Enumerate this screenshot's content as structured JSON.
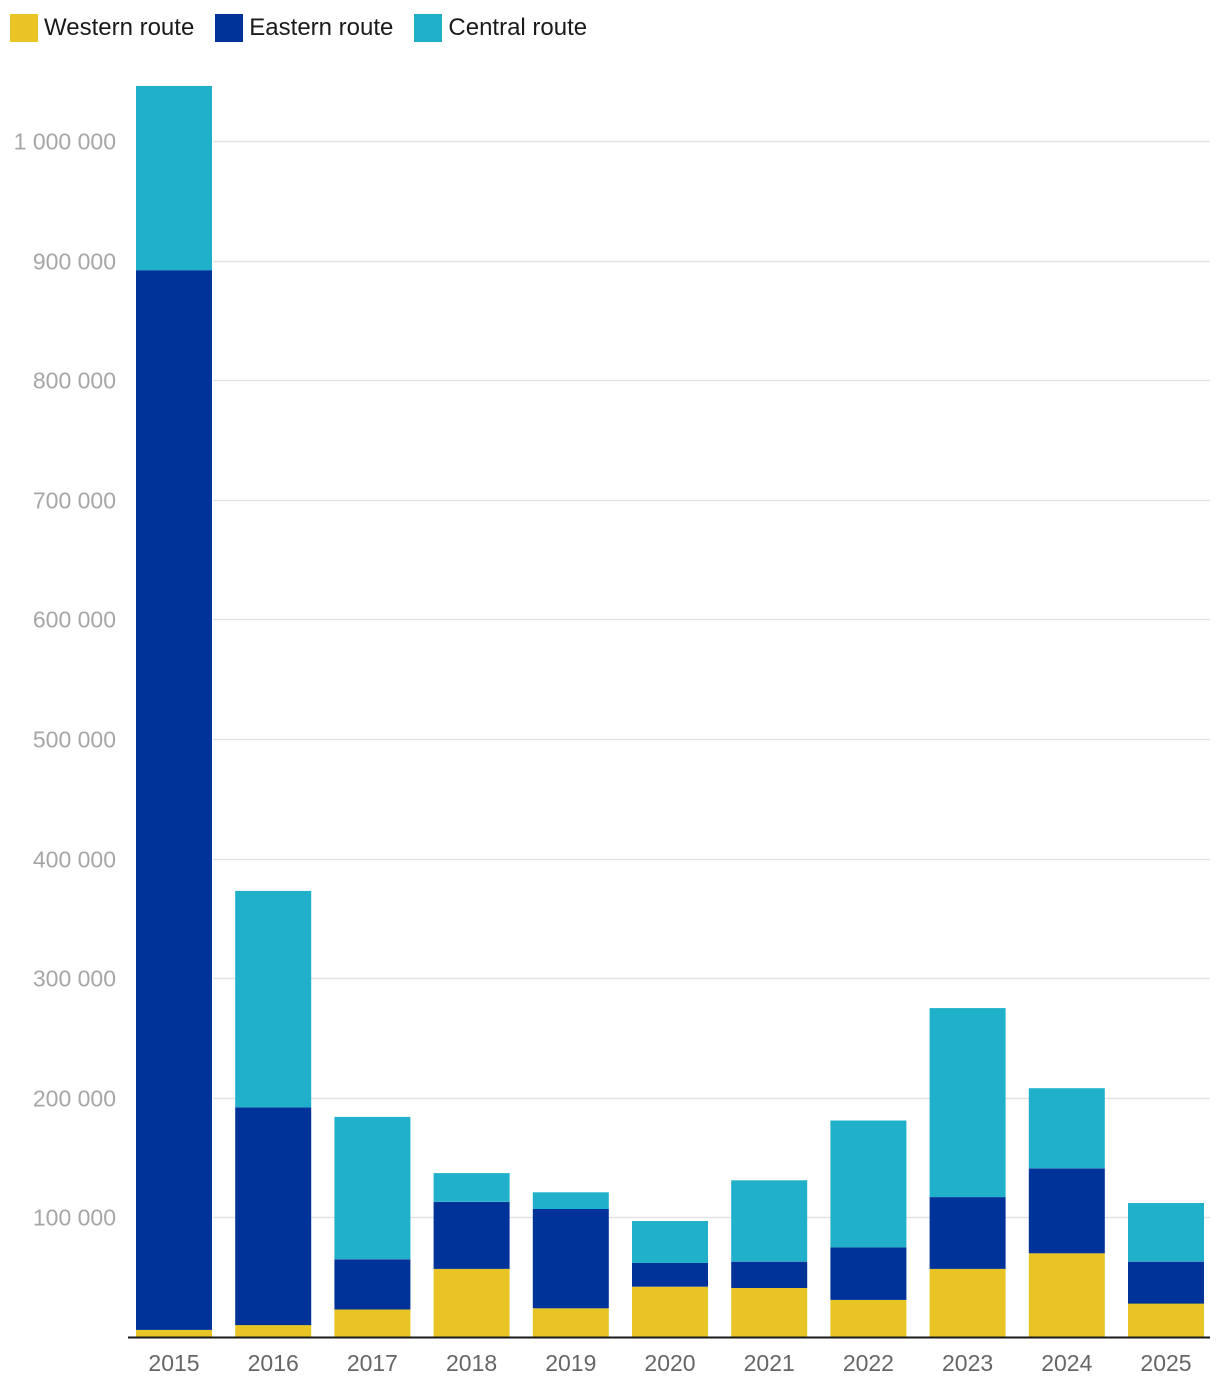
{
  "chart_data": {
    "type": "bar",
    "stacked": true,
    "categories": [
      "2015",
      "2016",
      "2017",
      "2018",
      "2019",
      "2020",
      "2021",
      "2022",
      "2023",
      "2024",
      "2025"
    ],
    "series": [
      {
        "name": "Western route",
        "color": "#e8c524",
        "values": [
          6000,
          10000,
          23000,
          57000,
          24000,
          42000,
          41000,
          31000,
          57000,
          70000,
          28000
        ]
      },
      {
        "name": "Eastern route",
        "color": "#003399",
        "values": [
          886000,
          182000,
          42000,
          56000,
          83000,
          20000,
          22000,
          44000,
          60000,
          71000,
          35000
        ]
      },
      {
        "name": "Central route",
        "color": "#21b0ca",
        "values": [
          154000,
          181000,
          119000,
          24000,
          14000,
          35000,
          68000,
          106000,
          158000,
          67000,
          49000
        ]
      }
    ],
    "y_ticks": [
      100000,
      200000,
      300000,
      400000,
      500000,
      600000,
      700000,
      800000,
      900000,
      1000000
    ],
    "y_tick_labels": [
      "100 000",
      "200 000",
      "300 000",
      "400 000",
      "500 000",
      "600 000",
      "700 000",
      "800 000",
      "900 000",
      "1 000 000"
    ],
    "ylim": [
      0,
      1000000
    ],
    "grid": true,
    "legend_position": "top-left",
    "title": "",
    "xlabel": "",
    "ylabel": ""
  }
}
